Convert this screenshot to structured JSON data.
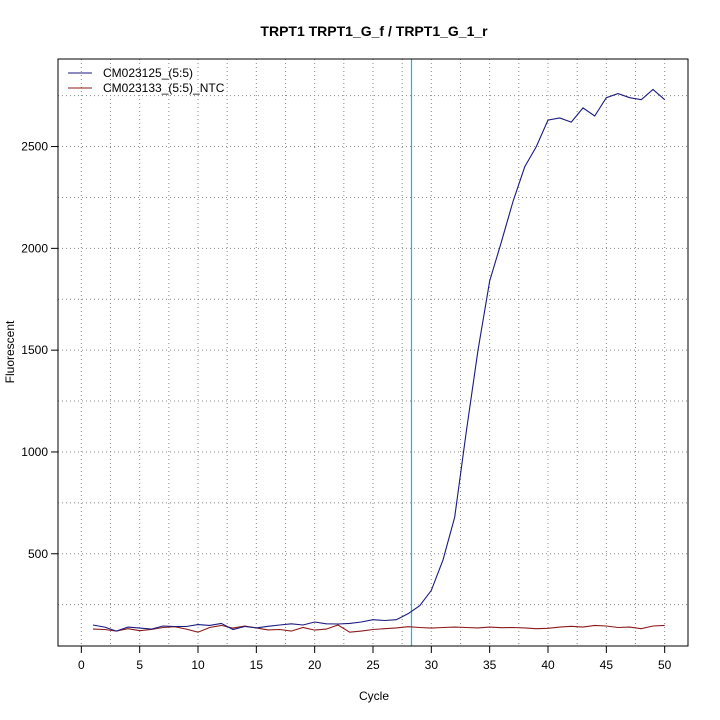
{
  "chart_data": {
    "type": "line",
    "title": "TRPT1  TRPT1_G_f / TRPT1_G_1_r",
    "xlabel": "Cycle",
    "ylabel": "Fluorescent",
    "xlim": [
      -2,
      52
    ],
    "ylim": [
      47,
      2930
    ],
    "x_ticks": [
      0,
      5,
      10,
      15,
      20,
      25,
      30,
      35,
      40,
      45,
      50
    ],
    "y_ticks": [
      500,
      1000,
      1500,
      2000,
      2500
    ],
    "grid": true,
    "legend_position": "top-left",
    "threshold_cycle": 28.3,
    "colors": {
      "threshold": "#00c0ee"
    },
    "series": [
      {
        "name": "CM023125_(5:5)",
        "color": "#1a1a80",
        "x": [
          1,
          2,
          3,
          4,
          5,
          6,
          7,
          8,
          9,
          10,
          11,
          12,
          13,
          14,
          15,
          16,
          17,
          18,
          19,
          20,
          21,
          22,
          23,
          24,
          25,
          26,
          27,
          28,
          29,
          30,
          31,
          32,
          33,
          34,
          35,
          36,
          37,
          38,
          39,
          40,
          41,
          42,
          43,
          44,
          45,
          46,
          47,
          48,
          49,
          50
        ],
        "y": [
          150,
          140,
          120,
          140,
          135,
          130,
          145,
          143,
          143,
          152,
          148,
          158,
          128,
          143,
          136,
          144,
          150,
          156,
          150,
          165,
          156,
          155,
          158,
          165,
          176,
          172,
          176,
          205,
          245,
          320,
          470,
          680,
          1100,
          1500,
          1840,
          2030,
          2230,
          2400,
          2500,
          2630,
          2640,
          2620,
          2690,
          2650,
          2740,
          2760,
          2740,
          2730,
          2780,
          2730
        ]
      },
      {
        "name": "CM023133_(5:5)_NTC",
        "color": "#8b1a1a",
        "x": [
          1,
          2,
          3,
          4,
          5,
          6,
          7,
          8,
          9,
          10,
          11,
          12,
          13,
          14,
          15,
          16,
          17,
          18,
          19,
          20,
          21,
          22,
          23,
          24,
          25,
          26,
          27,
          28,
          29,
          30,
          31,
          32,
          33,
          34,
          35,
          36,
          37,
          38,
          39,
          40,
          41,
          42,
          43,
          44,
          45,
          46,
          47,
          48,
          49,
          50
        ],
        "y": [
          130,
          128,
          120,
          132,
          122,
          128,
          138,
          142,
          130,
          115,
          138,
          148,
          135,
          145,
          136,
          126,
          128,
          120,
          138,
          125,
          130,
          150,
          115,
          120,
          128,
          132,
          136,
          142,
          138,
          135,
          138,
          140,
          138,
          136,
          140,
          137,
          138,
          136,
          132,
          134,
          140,
          144,
          140,
          148,
          145,
          138,
          140,
          132,
          145,
          148
        ]
      }
    ]
  }
}
